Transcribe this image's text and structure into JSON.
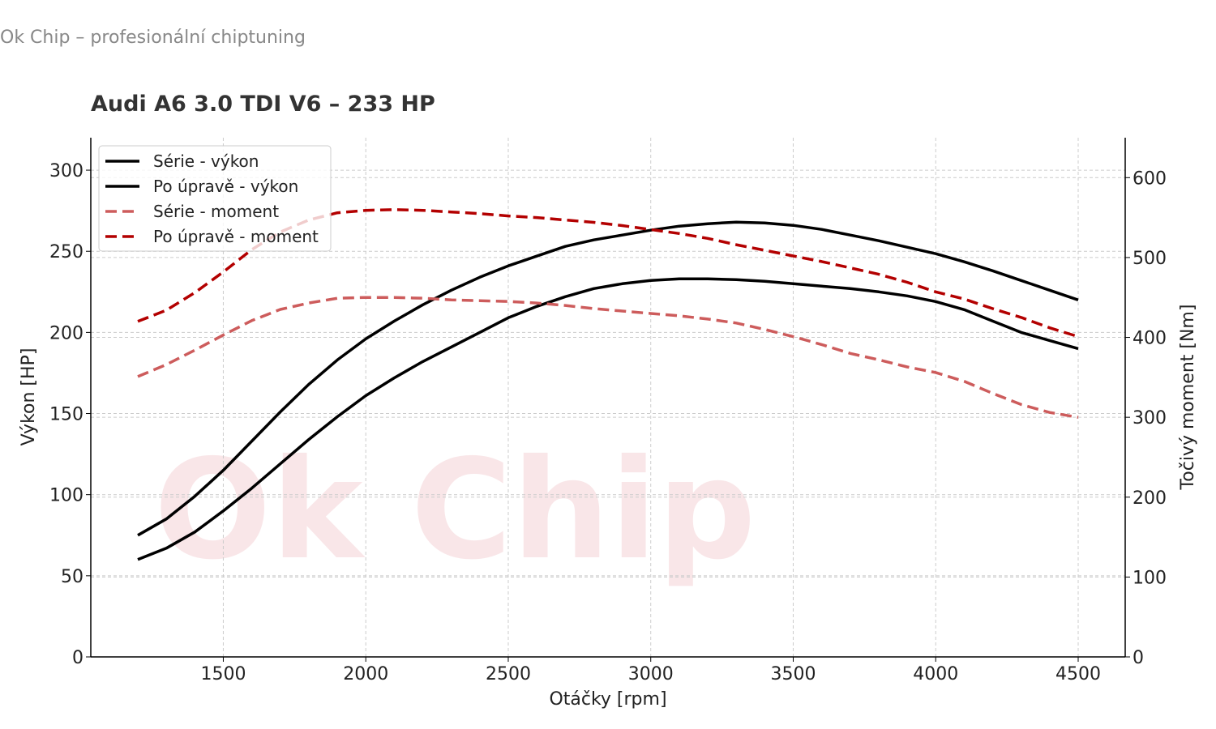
{
  "header": {
    "brand": "Ok Chip – profesionální chiptuning"
  },
  "watermark": "Ok Chip",
  "chart_data": {
    "type": "line",
    "title": "Audi A6 3.0 TDI V6 – 233 HP",
    "xlabel": "Otáčky [rpm]",
    "ylabel": "Výkon [HP]",
    "y2label": "Točivý moment [Nm]",
    "xlim": [
      1035,
      4665
    ],
    "ylim": [
      0,
      320
    ],
    "y2lim": [
      0,
      650
    ],
    "xticks": [
      1500,
      2000,
      2500,
      3000,
      3500,
      4000,
      4500
    ],
    "yticks": [
      0,
      50,
      100,
      150,
      200,
      250,
      300
    ],
    "y2ticks": [
      0,
      100,
      200,
      300,
      400,
      500,
      600
    ],
    "grid": true,
    "legend_position": "top-left",
    "x": [
      1200,
      1300,
      1400,
      1500,
      1600,
      1700,
      1800,
      1900,
      2000,
      2100,
      2200,
      2300,
      2400,
      2500,
      2600,
      2700,
      2800,
      2900,
      3000,
      3100,
      3200,
      3300,
      3400,
      3500,
      3600,
      3700,
      3800,
      3900,
      4000,
      4100,
      4200,
      4300,
      4400,
      4500
    ],
    "series": [
      {
        "name": "Série - výkon",
        "axis": "left",
        "color": "#000000",
        "dash": false,
        "values": [
          60,
          67,
          77,
          90,
          104,
          119,
          134,
          148,
          161,
          172,
          182,
          191,
          200,
          209,
          216,
          222,
          227,
          230,
          232,
          233,
          233,
          232.5,
          231.5,
          230,
          228.5,
          227,
          225,
          222.5,
          219,
          214,
          207,
          200,
          195,
          190
        ]
      },
      {
        "name": "Po úpravě - výkon",
        "axis": "left",
        "color": "#000000",
        "dash": false,
        "values": [
          75,
          85,
          99,
          115,
          133,
          151,
          168,
          183,
          196,
          207,
          217,
          226,
          234,
          241,
          247,
          253,
          257,
          260,
          263,
          265.5,
          267,
          268,
          267.5,
          266,
          263.5,
          260,
          256.5,
          252.5,
          248.5,
          243.5,
          238,
          232,
          226,
          220
        ]
      },
      {
        "name": "Série - moment",
        "axis": "right",
        "color": "#cd5c5c",
        "dash": true,
        "values": [
          351,
          366,
          384,
          403,
          421,
          435,
          443,
          449,
          450,
          450,
          449,
          447,
          446,
          445,
          443,
          440,
          436,
          433,
          430,
          427,
          423,
          418,
          410,
          401,
          391,
          380,
          372,
          363,
          356,
          345,
          330,
          316,
          306,
          300
        ]
      },
      {
        "name": "Po úpravě - moment",
        "axis": "right",
        "color": "#b30000",
        "dash": true,
        "values": [
          420,
          434,
          456,
          482,
          510,
          532,
          547,
          556,
          559,
          560,
          559,
          557,
          555,
          552,
          550,
          547,
          544,
          540,
          535,
          530,
          524,
          516,
          509,
          502,
          495,
          487,
          479,
          469,
          457,
          448,
          436,
          425,
          412,
          401
        ]
      }
    ]
  }
}
